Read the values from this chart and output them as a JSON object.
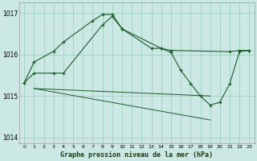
{
  "title": "Graphe pression niveau de la mer (hPa)",
  "background_color": "#cce8e4",
  "grid_color": "#99ccbb",
  "line_color": "#1a5c2a",
  "ylim": [
    1013.85,
    1017.25
  ],
  "yticks": [
    1014,
    1015,
    1016,
    1017
  ],
  "xlim": [
    -0.5,
    23.5
  ],
  "xticks": [
    0,
    1,
    2,
    3,
    4,
    5,
    6,
    7,
    8,
    9,
    10,
    11,
    12,
    13,
    14,
    15,
    16,
    17,
    18,
    19,
    20,
    21,
    22,
    23
  ],
  "line1_x": [
    0,
    1,
    3,
    4,
    7,
    8,
    9,
    10,
    13,
    14,
    15,
    21,
    22,
    23
  ],
  "line1_y": [
    1015.32,
    1015.82,
    1016.08,
    1016.3,
    1016.82,
    1016.97,
    1016.97,
    1016.62,
    1016.15,
    1016.15,
    1016.1,
    1016.07,
    1016.1,
    1016.1
  ],
  "line2_x": [
    0,
    1,
    3,
    4,
    8,
    9,
    10,
    14,
    15,
    16,
    17,
    18,
    19,
    20,
    21,
    22,
    23
  ],
  "line2_y": [
    1015.32,
    1015.55,
    1015.55,
    1015.55,
    1016.72,
    1016.92,
    1016.62,
    1016.15,
    1016.05,
    1015.62,
    1015.3,
    1015.0,
    1014.78,
    1014.85,
    1015.3,
    1016.07,
    1016.1
  ],
  "line3_x": [
    1,
    19
  ],
  "line3_y": [
    1015.18,
    1014.42
  ],
  "line4_x": [
    1,
    19
  ],
  "line4_y": [
    1015.18,
    1015.0
  ],
  "xlabel": "Graphe pression niveau de la mer (hPa)"
}
